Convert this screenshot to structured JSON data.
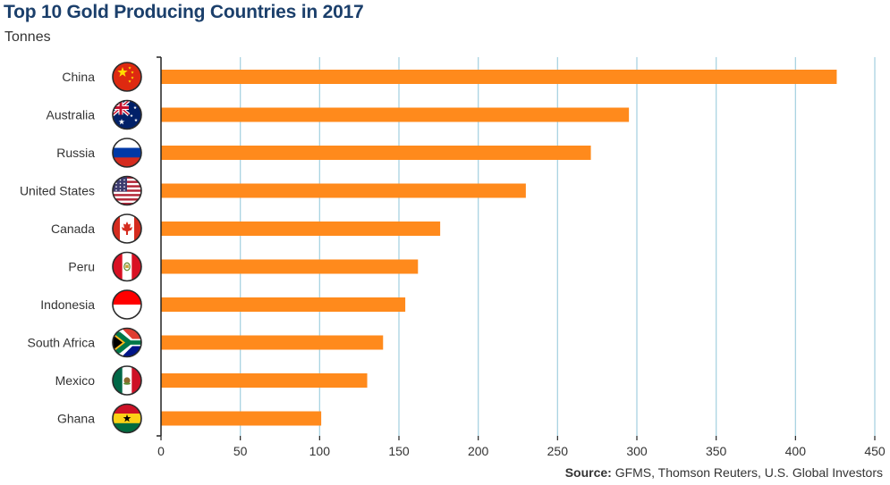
{
  "chart_data": {
    "type": "bar",
    "orientation": "horizontal",
    "title": "Top 10 Gold Producing Countries in 2017",
    "subtitle": "Tonnes",
    "categories": [
      "China",
      "Australia",
      "Russia",
      "United States",
      "Canada",
      "Peru",
      "Indonesia",
      "South Africa",
      "Mexico",
      "Ghana"
    ],
    "values": [
      426,
      295,
      271,
      230,
      176,
      162,
      154,
      140,
      130,
      101
    ],
    "xlim": [
      0,
      450
    ],
    "xticks": [
      0,
      50,
      100,
      150,
      200,
      250,
      300,
      350,
      400,
      450
    ],
    "xlabel": "",
    "ylabel": "",
    "grid": "vertical",
    "source_label": "Source:",
    "source_text": "GFMS, Thomson Reuters, U.S. Global Investors",
    "colors": {
      "bar": "#ff8a1c",
      "grid": "#a9d3e2",
      "title": "#1b3f6b",
      "axis": "#222222"
    },
    "flag_icons": [
      "china-flag-icon",
      "australia-flag-icon",
      "russia-flag-icon",
      "united-states-flag-icon",
      "canada-flag-icon",
      "peru-flag-icon",
      "indonesia-flag-icon",
      "south-africa-flag-icon",
      "mexico-flag-icon",
      "ghana-flag-icon"
    ]
  }
}
